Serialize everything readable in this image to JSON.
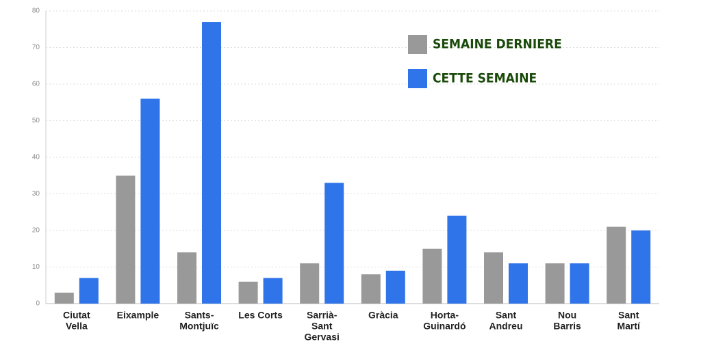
{
  "chart_data": {
    "type": "bar",
    "categories": [
      [
        "Ciutat",
        "Vella"
      ],
      [
        "Eixample"
      ],
      [
        "Sants-",
        "Montjuïc"
      ],
      [
        "Les Corts"
      ],
      [
        "Sarrià-",
        "Sant",
        "Gervasi"
      ],
      [
        "Gràcia"
      ],
      [
        "Horta-",
        "Guinardó"
      ],
      [
        "Sant",
        "Andreu"
      ],
      [
        "Nou",
        "Barris"
      ],
      [
        "Sant",
        "Martí"
      ]
    ],
    "series": [
      {
        "name": "SEMAINE DERNIERE",
        "color": "#999999",
        "values": [
          3,
          35,
          14,
          6,
          11,
          8,
          15,
          14,
          11,
          21
        ]
      },
      {
        "name": "CETTE SEMAINE",
        "color": "#2f74e8",
        "values": [
          7,
          56,
          77,
          7,
          33,
          9,
          24,
          11,
          11,
          20
        ]
      }
    ],
    "ylim": [
      0,
      80
    ],
    "yticks": [
      0,
      10,
      20,
      30,
      40,
      50,
      60,
      70,
      80
    ],
    "grid": true,
    "legend": "top-right"
  }
}
